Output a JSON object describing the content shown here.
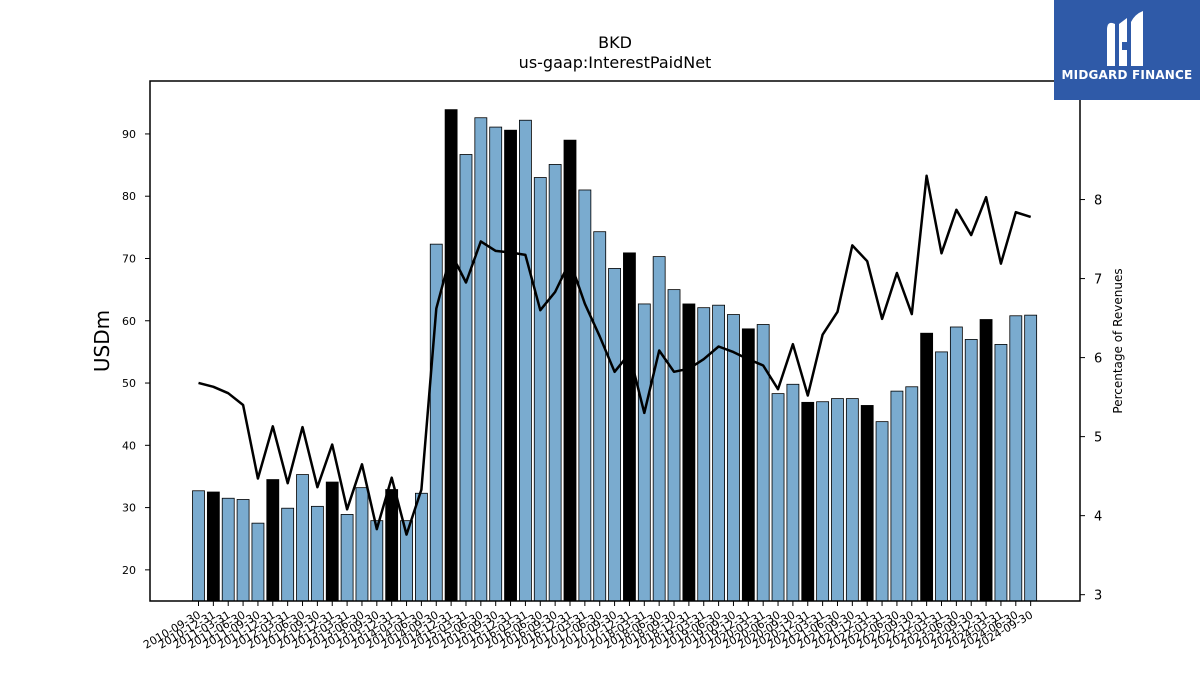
{
  "chart_data": {
    "type": "bar",
    "title": "BKD",
    "subtitle": "us-gaap:InterestPaidNet",
    "ylabel": "USDm",
    "y2label": "Percentage of Revenues",
    "ylim": [
      15,
      98.5
    ],
    "y2lim": [
      2.92,
      9.5
    ],
    "yticks": [
      20,
      30,
      40,
      50,
      60,
      70,
      80,
      90
    ],
    "y2ticks": [
      3,
      4,
      5,
      6,
      7,
      8
    ],
    "bar_color": "#7aabcf",
    "highlight_color": "#000000",
    "line_color": "#000000",
    "categories": [
      "2010-09-30",
      "2010-12-31",
      "2011-03-31",
      "2011-06-30",
      "2011-09-30",
      "2011-12-31",
      "2012-03-31",
      "2012-06-30",
      "2012-09-30",
      "2012-12-31",
      "2013-03-31",
      "2013-06-30",
      "2013-09-30",
      "2013-12-31",
      "2014-03-31",
      "2014-06-30",
      "2014-09-30",
      "2014-12-31",
      "2015-03-31",
      "2015-06-30",
      "2015-09-30",
      "2015-12-31",
      "2016-03-31",
      "2016-06-30",
      "2016-09-30",
      "2016-12-31",
      "2017-03-31",
      "2017-06-30",
      "2017-09-30",
      "2017-12-31",
      "2018-03-31",
      "2018-06-30",
      "2018-09-30",
      "2018-12-31",
      "2019-03-31",
      "2019-06-30",
      "2019-09-30",
      "2019-12-31",
      "2020-03-31",
      "2020-06-30",
      "2020-09-30",
      "2020-12-31",
      "2021-03-31",
      "2021-06-30",
      "2021-09-30",
      "2021-12-31",
      "2022-03-31",
      "2022-06-30",
      "2022-09-30",
      "2022-12-31",
      "2023-03-31",
      "2023-06-30",
      "2023-09-30",
      "2023-12-31",
      "2024-03-31",
      "2024-06-30",
      "2024-09-30"
    ],
    "x_tick_labels": [
      "2010-09-30",
      "2010-12-31",
      "2011-03-31",
      "2011-06-30",
      "2011-09-30",
      "2011-12-31",
      "2012-03-31",
      "2012-06-30",
      "2012-09-30",
      "2012-12-31",
      "2013-03-31",
      "2013-06-30",
      "2013-09-30",
      "2013-12-31",
      "2014-03-31",
      "2014-06-30",
      "2014-09-30",
      "2014-12-31",
      "2015-03-31",
      "2015-06-30",
      "2015-09-30",
      "2015-12-31",
      "2016-03-31",
      "2016-06-30",
      "2016-09-30",
      "2016-12-31",
      "2017-03-31",
      "2017-06-30",
      "2017-09-30",
      "2017-12-31",
      "2018-03-31",
      "2018-06-30",
      "2018-09-30",
      "2018-12-31",
      "2019-03-31",
      "2019-06-30",
      "2019-09-30",
      "2019-12-31",
      "2020-03-31",
      "2020-06-30",
      "2020-09-30",
      "2020-12-31",
      "2021-03-31",
      "2021-06-30",
      "2021-09-30",
      "2021-12-31",
      "2022-03-31",
      "2022-06-30",
      "2022-09-30",
      "2022-12-31",
      "2023-03-31",
      "2023-06-30",
      "2023-09-30",
      "2023-12-31",
      "2024-03-31",
      "2024-06-30",
      "2024-09-30"
    ],
    "series": [
      {
        "axis": "left",
        "kind": "bar",
        "values": [
          32.7,
          32.5,
          31.5,
          31.3,
          27.5,
          34.5,
          29.9,
          35.3,
          30.2,
          34.1,
          28.9,
          33.2,
          27.9,
          32.9,
          27.9,
          32.3,
          72.3,
          93.9,
          86.7,
          92.6,
          91.1,
          90.6,
          92.2,
          83.0,
          85.1,
          89.0,
          81.0,
          74.3,
          68.4,
          70.9,
          62.7,
          70.3,
          65.0,
          62.7,
          62.1,
          62.5,
          61.0,
          58.7,
          59.4,
          48.3,
          49.8,
          46.9,
          47.0,
          47.5,
          47.5,
          46.4,
          43.8,
          48.7,
          49.4,
          58.0,
          55.0,
          59.0,
          57.0,
          60.2,
          56.2,
          60.8,
          60.9
        ],
        "highlight": [
          false,
          true,
          false,
          false,
          false,
          true,
          false,
          false,
          false,
          true,
          false,
          false,
          false,
          true,
          false,
          false,
          false,
          true,
          false,
          false,
          false,
          true,
          false,
          false,
          false,
          true,
          false,
          false,
          false,
          true,
          false,
          false,
          false,
          true,
          false,
          false,
          false,
          true,
          false,
          false,
          false,
          true,
          false,
          false,
          false,
          true,
          false,
          false,
          false,
          true,
          false,
          false,
          false,
          true,
          false,
          false,
          false
        ]
      },
      {
        "axis": "right",
        "kind": "line",
        "values": [
          5.68,
          5.63,
          5.55,
          5.4,
          4.47,
          5.13,
          4.41,
          5.12,
          4.36,
          4.9,
          4.08,
          4.65,
          3.83,
          4.48,
          3.76,
          4.33,
          6.62,
          7.32,
          6.95,
          7.47,
          7.35,
          7.33,
          7.3,
          6.6,
          6.83,
          7.22,
          6.68,
          6.27,
          5.82,
          6.05,
          5.3,
          6.09,
          5.82,
          5.86,
          5.98,
          6.14,
          6.07,
          5.98,
          5.9,
          5.6,
          6.17,
          5.52,
          6.29,
          6.58,
          7.42,
          7.22,
          6.49,
          7.07,
          6.55,
          8.3,
          7.32,
          7.87,
          7.55,
          8.03,
          7.19,
          7.84,
          7.78
        ]
      }
    ]
  },
  "logo": {
    "name": "MIDGARD FINANCE"
  }
}
